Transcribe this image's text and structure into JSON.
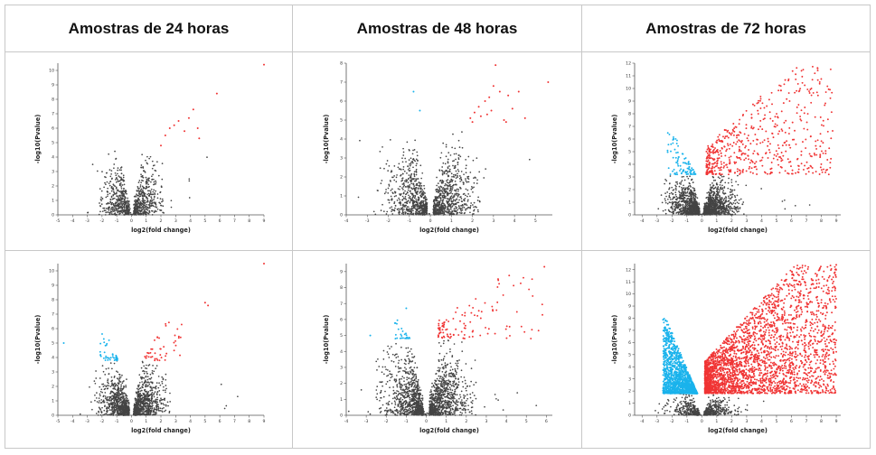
{
  "headers": [
    "Amostras de 24 horas",
    "Amostras de 48 horas",
    "Amostras de 72 horas"
  ],
  "colors": {
    "down": "#1ab3ec",
    "up": "#f03434",
    "ns": "#444444",
    "axis": "#555555",
    "grid_line": "#c8c8c8"
  },
  "chart_data": [
    {
      "type": "scatter",
      "xlabel": "log2(fold change)",
      "ylabel": "-log10(Pvalue)",
      "xticks": [
        -5,
        -4,
        -3,
        -2,
        -1,
        0,
        1,
        2,
        3,
        4,
        5,
        6,
        7,
        8,
        9
      ],
      "yticks": [
        0,
        1,
        2,
        3,
        4,
        5,
        6,
        7,
        8,
        9,
        10
      ],
      "xlim": [
        -5,
        9
      ],
      "ylim": [
        0,
        10.5
      ],
      "ns_xmax": 2.2,
      "sig_y": 4.8,
      "ns_ymax": 4.4,
      "n_ns": 900,
      "up": [
        [
          2.0,
          4.8
        ],
        [
          2.3,
          5.5
        ],
        [
          2.6,
          6.0
        ],
        [
          2.9,
          6.2
        ],
        [
          3.2,
          6.5
        ],
        [
          3.6,
          5.8
        ],
        [
          3.9,
          6.7
        ],
        [
          4.2,
          7.3
        ],
        [
          4.6,
          5.3
        ],
        [
          4.5,
          6.0
        ],
        [
          5.8,
          8.4
        ],
        [
          9.0,
          10.4
        ]
      ],
      "down": []
    },
    {
      "type": "scatter",
      "xlabel": "log2(fold change)",
      "ylabel": "-log10(Pvalue)",
      "xticks": [
        -4,
        -3,
        -2,
        -1,
        0,
        1,
        2,
        3,
        4,
        5
      ],
      "yticks": [
        0,
        1,
        2,
        3,
        4,
        5,
        6,
        7,
        8
      ],
      "xlim": [
        -4,
        5.8
      ],
      "ylim": [
        0,
        8
      ],
      "ns_xmax": 2.4,
      "sig_y": 4.9,
      "ns_ymax": 4.4,
      "n_ns": 1300,
      "up": [
        [
          1.9,
          5.1
        ],
        [
          2.1,
          5.4
        ],
        [
          2.3,
          5.7
        ],
        [
          2.4,
          5.2
        ],
        [
          2.6,
          6.0
        ],
        [
          2.8,
          6.2
        ],
        [
          2.9,
          5.5
        ],
        [
          3.1,
          7.9
        ],
        [
          3.3,
          6.5
        ],
        [
          3.5,
          5.0
        ],
        [
          3.7,
          6.3
        ],
        [
          3.9,
          5.6
        ],
        [
          4.2,
          6.5
        ],
        [
          4.5,
          5.1
        ],
        [
          5.6,
          7.0
        ],
        [
          2.0,
          4.9
        ],
        [
          2.7,
          5.3
        ],
        [
          3.0,
          6.8
        ],
        [
          3.6,
          4.9
        ]
      ],
      "down": [
        [
          -0.8,
          6.5
        ],
        [
          -0.5,
          5.5
        ]
      ]
    },
    {
      "type": "scatter",
      "xlabel": "log2(fold change)",
      "ylabel": "-log10(Pvalue)",
      "xticks": [
        -4,
        -3,
        -2,
        -1,
        0,
        1,
        2,
        3,
        4,
        5,
        6,
        7,
        8,
        9
      ],
      "yticks": [
        0,
        1,
        2,
        3,
        4,
        5,
        6,
        7,
        8,
        9,
        10,
        11,
        12
      ],
      "xlim": [
        -4.5,
        9.3
      ],
      "ylim": [
        0,
        12
      ],
      "ns_xmax": 3,
      "sig_y": 3.2,
      "ns_ymax": 3.2,
      "n_ns": 1800,
      "down_range": [
        -2.3,
        -0.4,
        3.2,
        7.0
      ],
      "n_down": 90,
      "up_range": [
        0.3,
        8.8,
        3.2,
        11.8
      ],
      "n_up": 550,
      "up": [],
      "down": []
    },
    {
      "type": "scatter",
      "xlabel": "log2(fold change)",
      "ylabel": "-log10(Pvalue)",
      "xticks": [
        -5,
        -4,
        -3,
        -2,
        -1,
        0,
        1,
        2,
        3,
        4,
        5,
        6,
        7,
        8,
        9
      ],
      "yticks": [
        0,
        1,
        2,
        3,
        4,
        5,
        6,
        7,
        8,
        9,
        10
      ],
      "xlim": [
        -5,
        9
      ],
      "ylim": [
        0,
        10.5
      ],
      "ns_xmax": 2.5,
      "sig_y": 3.8,
      "ns_ymax": 3.8,
      "n_ns": 1500,
      "down_range": [
        -2.2,
        -0.9,
        3.8,
        6.6
      ],
      "n_down": 40,
      "up_range": [
        0.9,
        3.5,
        3.8,
        6.8
      ],
      "n_up": 45,
      "up": [
        [
          5.0,
          7.8
        ],
        [
          5.2,
          7.6
        ],
        [
          9.0,
          10.5
        ]
      ],
      "down": [
        [
          -4.6,
          5.0
        ]
      ]
    },
    {
      "type": "scatter",
      "xlabel": "log2(fold change)",
      "ylabel": "-log10(Pvalue)",
      "xticks": [
        -4,
        -3,
        -2,
        -1,
        0,
        1,
        2,
        3,
        4,
        5,
        6
      ],
      "yticks": [
        0,
        1,
        2,
        3,
        4,
        5,
        6,
        7,
        8,
        9
      ],
      "xlim": [
        -4,
        6.3
      ],
      "ylim": [
        0,
        9.5
      ],
      "ns_xmax": 2.5,
      "sig_y": 4.8,
      "ns_ymax": 4.8,
      "n_ns": 1700,
      "down_range": [
        -1.6,
        -0.8,
        4.8,
        6.2
      ],
      "n_down": 25,
      "up_range": [
        0.6,
        6.0,
        4.8,
        9.3
      ],
      "n_up": 110,
      "up": [
        [
          5.9,
          9.3
        ]
      ],
      "down": [
        [
          -1.0,
          6.7
        ],
        [
          -2.8,
          5.0
        ]
      ]
    },
    {
      "type": "scatter",
      "xlabel": "log2(fold change)",
      "ylabel": "-log10(Pvalue)",
      "xticks": [
        -4,
        -3,
        -2,
        -1,
        0,
        1,
        2,
        3,
        4,
        5,
        6,
        7,
        8,
        9
      ],
      "yticks": [
        0,
        1,
        2,
        3,
        4,
        5,
        6,
        7,
        8,
        9,
        10,
        11,
        12
      ],
      "xlim": [
        -4.5,
        9.3
      ],
      "ylim": [
        0,
        12.5
      ],
      "ns_xmax": 3.2,
      "sig_y": 1.8,
      "ns_ymax": 2.0,
      "n_ns": 600,
      "down_range": [
        -2.6,
        -0.3,
        1.8,
        8.0
      ],
      "n_down": 1500,
      "up_range": [
        0.2,
        9.0,
        1.8,
        12.4
      ],
      "n_up": 2800,
      "up": [
        [
          9.0,
          12.4
        ],
        [
          8.7,
          11.2
        ]
      ],
      "down": []
    }
  ]
}
